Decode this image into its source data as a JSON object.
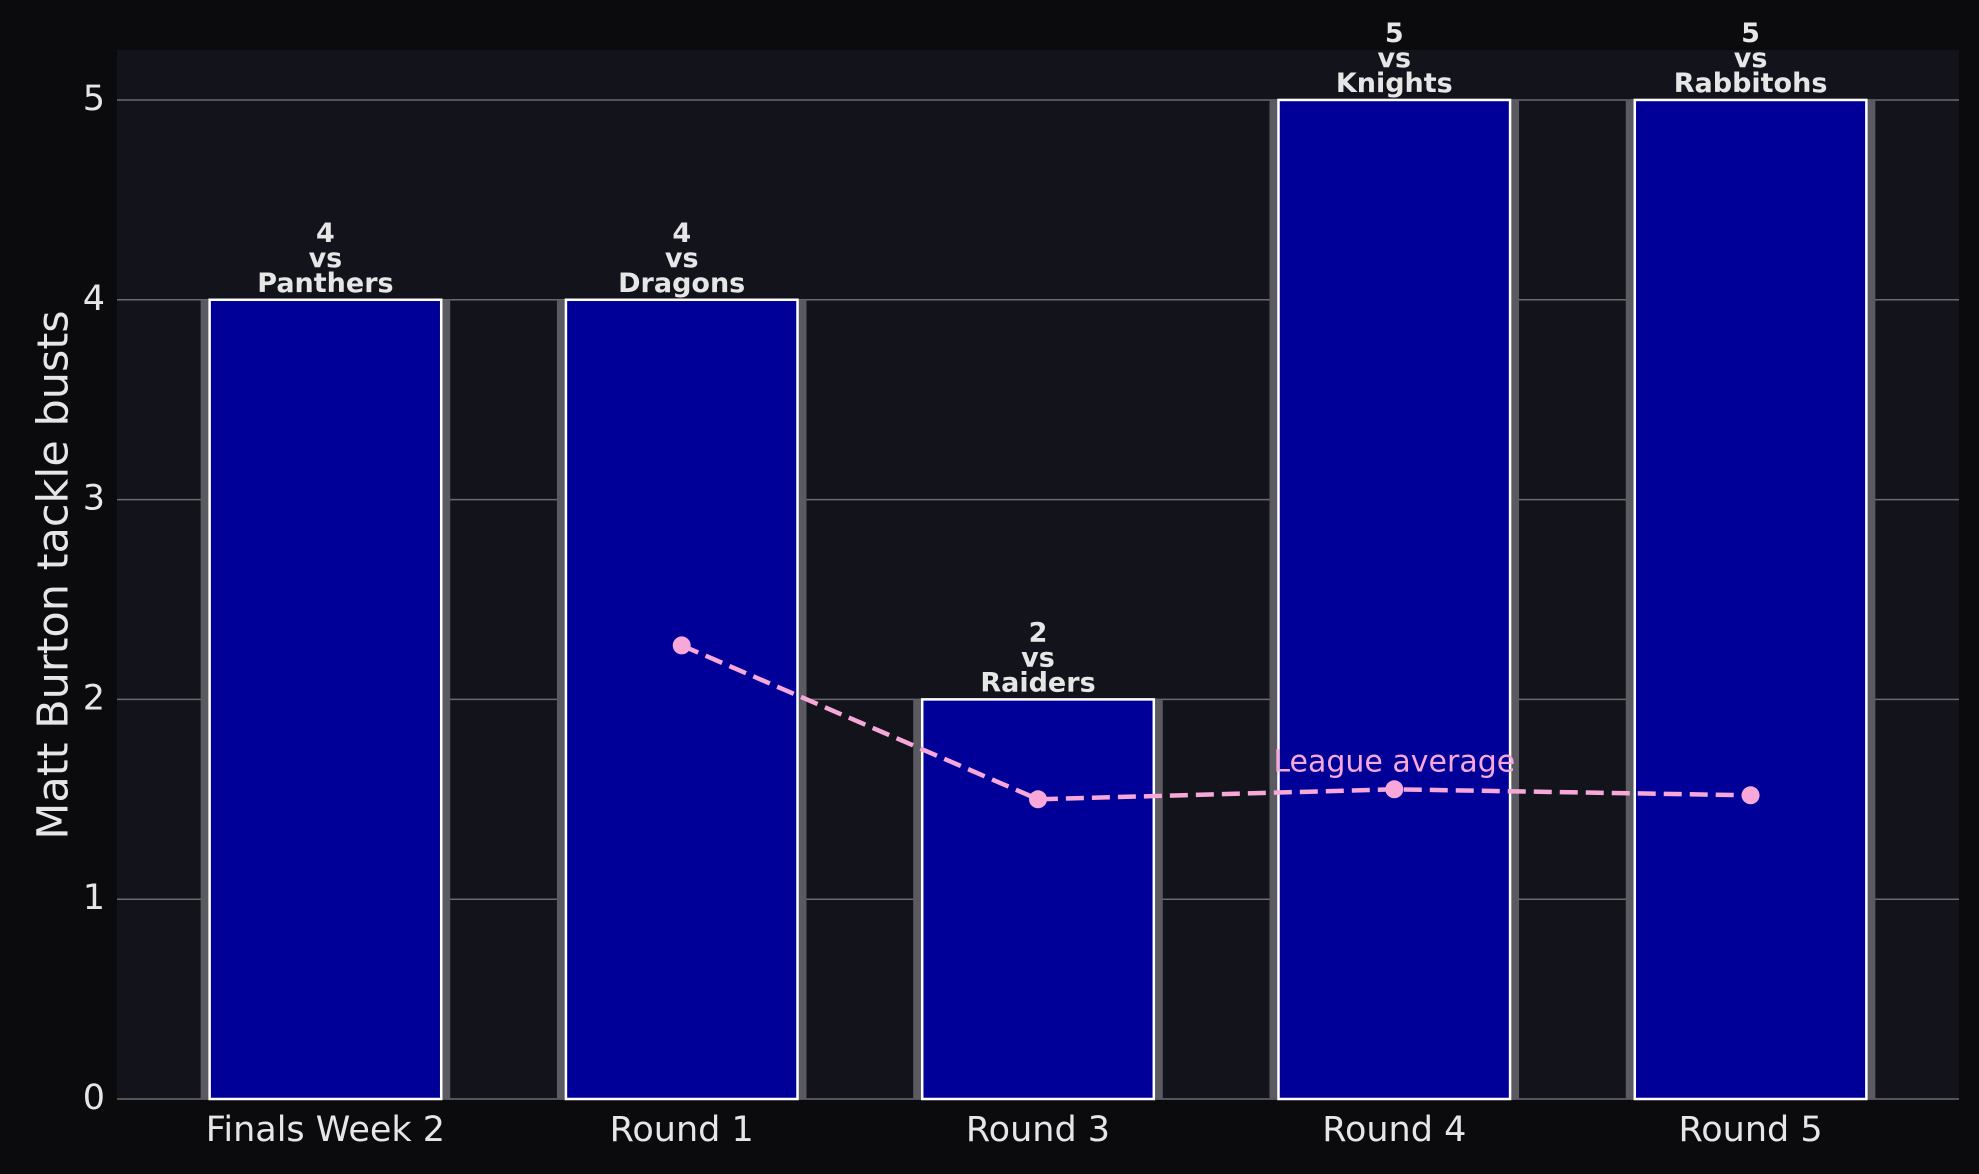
{
  "chart_data": {
    "type": "bar",
    "ylabel": "Matt Burton tackle busts",
    "categories": [
      "Finals Week 2",
      "Round 1",
      "Round 3",
      "Round 4",
      "Round 5"
    ],
    "values": [
      4,
      4,
      2,
      5,
      5
    ],
    "value_labels": [
      "4\nvs\nPanthers",
      "4\nvs\nDragons",
      "2\nvs\nRaiders",
      "5\nvs\nKnights",
      "5\nvs\nRabbitohs"
    ],
    "color": "#000099",
    "average": {
      "name": "League average",
      "color": "#f7a8d8",
      "values": [
        null,
        2.27,
        1.5,
        1.55,
        1.52
      ]
    },
    "ylim": [
      0,
      5.25
    ],
    "yticks": [
      0,
      1,
      2,
      3,
      4,
      5
    ],
    "grid": true
  }
}
